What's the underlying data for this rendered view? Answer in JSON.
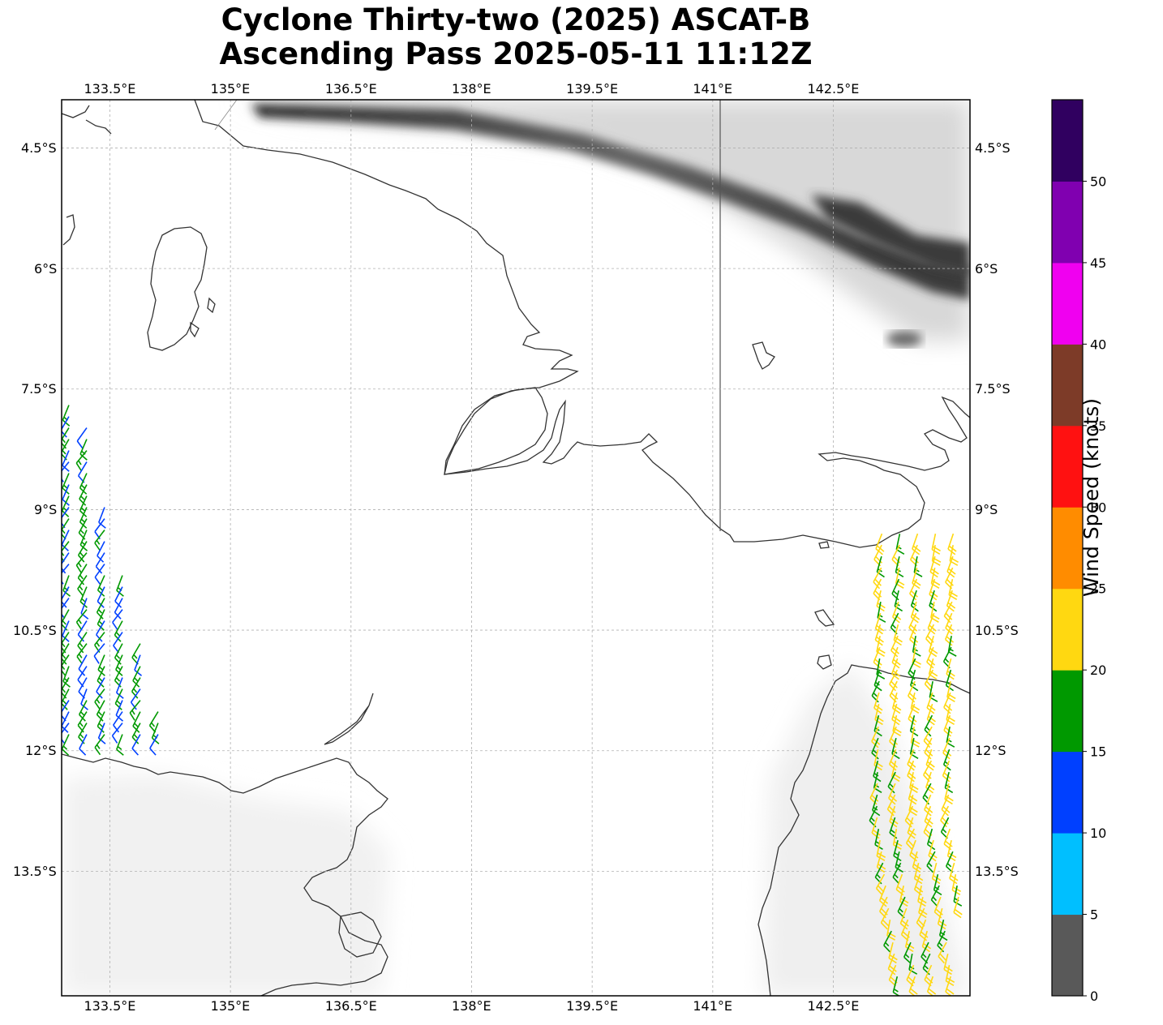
{
  "title": {
    "line1": "Cyclone Thirty-two (2025) ASCAT-B",
    "line2": "Ascending Pass 2025-05-11 11:12Z"
  },
  "map": {
    "lon_range": [
      132.9,
      144.2
    ],
    "lat_range": [
      -15.05,
      -3.9
    ],
    "lon_ticks": [
      {
        "value": 133.5,
        "label": "133.5°E"
      },
      {
        "value": 135.0,
        "label": "135°E"
      },
      {
        "value": 136.5,
        "label": "136.5°E"
      },
      {
        "value": 138.0,
        "label": "138°E"
      },
      {
        "value": 139.5,
        "label": "139.5°E"
      },
      {
        "value": 141.0,
        "label": "141°E"
      },
      {
        "value": 142.5,
        "label": "142.5°E"
      }
    ],
    "lat_ticks": [
      {
        "value": -4.5,
        "label": "4.5°S"
      },
      {
        "value": -6.0,
        "label": "6°S"
      },
      {
        "value": -7.5,
        "label": "7.5°S"
      },
      {
        "value": -9.0,
        "label": "9°S"
      },
      {
        "value": -10.5,
        "label": "10.5°S"
      },
      {
        "value": -12.0,
        "label": "12°S"
      },
      {
        "value": -13.5,
        "label": "13.5°S"
      }
    ],
    "gridlines": true,
    "terrain": "grayscale elevation shading",
    "coastline_color": "#333333",
    "border_meridian": 141.0
  },
  "colorbar": {
    "label": "Wind Speed (knots)",
    "ticks": [
      "0",
      "5",
      "10",
      "15",
      "20",
      "25",
      "30",
      "35",
      "40",
      "45",
      "50"
    ],
    "bins": [
      {
        "from": 0,
        "to": 5,
        "color": "#595959"
      },
      {
        "from": 5,
        "to": 10,
        "color": "#00bfff"
      },
      {
        "from": 10,
        "to": 15,
        "color": "#0040ff"
      },
      {
        "from": 15,
        "to": 20,
        "color": "#009900"
      },
      {
        "from": 20,
        "to": 25,
        "color": "#ffd811"
      },
      {
        "from": 25,
        "to": 30,
        "color": "#ff8c00"
      },
      {
        "from": 30,
        "to": 35,
        "color": "#ff1111"
      },
      {
        "from": 35,
        "to": 40,
        "color": "#7d3b28"
      },
      {
        "from": 40,
        "to": 45,
        "color": "#f000f0"
      },
      {
        "from": 45,
        "to": 50,
        "color": "#8000b0"
      },
      {
        "from": 50,
        "to": 55,
        "color": "#300060"
      }
    ]
  },
  "wind_swaths": [
    {
      "name": "west-swath",
      "lon_range": [
        132.95,
        134.2
      ],
      "lat_range": [
        -7.7,
        -11.9
      ],
      "speed_kt": 13,
      "secondary_speed_kt": 17,
      "direction_deg": 120
    },
    {
      "name": "east-swath",
      "lon_range": [
        142.6,
        144.15
      ],
      "lat_range": [
        -9.3,
        -14.9
      ],
      "speed_kt": 21,
      "secondary_speed_kt": 18,
      "direction_deg": 110
    }
  ]
}
